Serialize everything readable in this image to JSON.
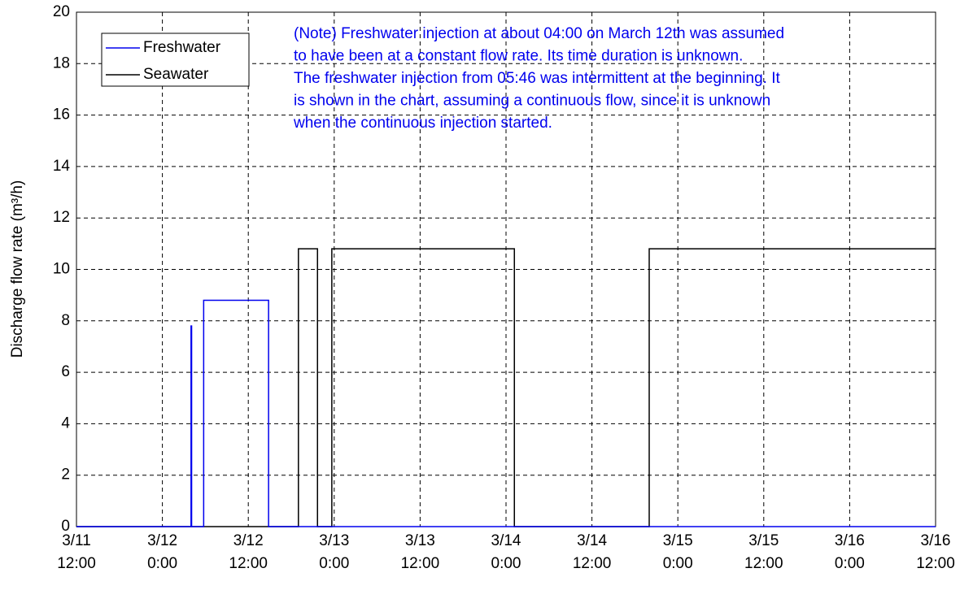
{
  "chart_data": {
    "type": "line",
    "y_label": "Discharge flow rate (m³/h)",
    "annotation": [
      "(Note) Freshwater injection at about 04:00 on March 12th was assumed",
      "to have been at a constant flow rate. Its time duration is unknown.",
      "The freshwater injection from 05:46 was intermittent at the beginning. It",
      "is shown in the chart, assuming a continuous flow, since it is unknown",
      "when the continuous injection started."
    ],
    "annotation_color": "#0000ee",
    "xlim": [
      "3/11 12:00",
      "3/16 12:00"
    ],
    "xticks": [
      "3/11\n12:00",
      "3/12\n0:00",
      "3/12\n12:00",
      "3/13\n0:00",
      "3/13\n12:00",
      "3/14\n0:00",
      "3/14\n12:00",
      "3/15\n0:00",
      "3/15\n12:00",
      "3/16\n0:00",
      "3/16\n12:00"
    ],
    "ylim": [
      0,
      20
    ],
    "yticks": [
      0,
      2,
      4,
      6,
      8,
      10,
      12,
      14,
      16,
      18,
      20
    ],
    "grid": true,
    "legend": "upper left",
    "series": [
      {
        "name": "Freshwater",
        "color": "#0000ee",
        "x": [
          "3/11 12:00",
          "3/12 04:00",
          "3/12 04:00",
          "3/12 04:05",
          "3/12 04:05",
          "3/12 05:46",
          "3/12 05:46",
          "3/12 14:50",
          "3/12 14:50",
          "3/16 12:00"
        ],
        "values": [
          0,
          0,
          7.8,
          7.8,
          0,
          0,
          8.8,
          8.8,
          0,
          0
        ]
      },
      {
        "name": "Seawater",
        "color": "#000000",
        "x": [
          "3/11 12:00",
          "3/12 19:00",
          "3/12 19:00",
          "3/12 21:40",
          "3/12 21:40",
          "3/12 23:40",
          "3/12 23:40",
          "3/14 01:10",
          "3/14 01:10",
          "3/14 20:00",
          "3/14 20:00",
          "3/16 12:00"
        ],
        "values": [
          0,
          0,
          10.8,
          10.8,
          0,
          0,
          10.8,
          10.8,
          0,
          0,
          10.8,
          10.8
        ]
      }
    ]
  }
}
